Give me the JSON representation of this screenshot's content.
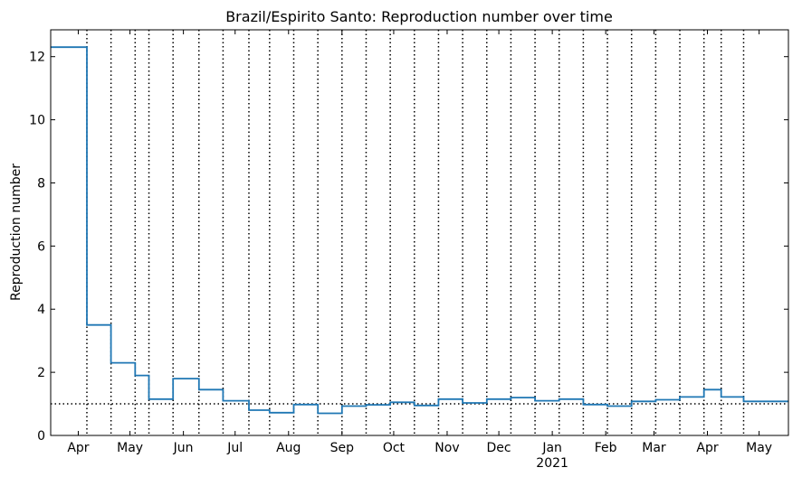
{
  "chart_data": {
    "type": "line",
    "title": "Brazil/Espirito Santo: Reproduction number over time",
    "xlabel": "",
    "ylabel": "Reproduction number",
    "xlim": [
      "2020-03-16",
      "2021-05-18"
    ],
    "ylim": [
      0,
      12.85
    ],
    "yticks": [
      0,
      2,
      4,
      6,
      8,
      10,
      12
    ],
    "xticks": [
      {
        "date": "2020-04-01",
        "label": "Apr"
      },
      {
        "date": "2020-05-01",
        "label": "May"
      },
      {
        "date": "2020-06-01",
        "label": "Jun"
      },
      {
        "date": "2020-07-01",
        "label": "Jul"
      },
      {
        "date": "2020-08-01",
        "label": "Aug"
      },
      {
        "date": "2020-09-01",
        "label": "Sep"
      },
      {
        "date": "2020-10-01",
        "label": "Oct"
      },
      {
        "date": "2020-11-01",
        "label": "Nov"
      },
      {
        "date": "2020-12-01",
        "label": "Dec"
      },
      {
        "date": "2021-01-01",
        "label": "Jan"
      },
      {
        "date": "2021-02-01",
        "label": "Feb"
      },
      {
        "date": "2021-03-01",
        "label": "Mar"
      },
      {
        "date": "2021-04-01",
        "label": "Apr"
      },
      {
        "date": "2021-05-01",
        "label": "May"
      }
    ],
    "year_label": {
      "date": "2021-01-01",
      "label": "2021"
    },
    "reference_line": 1,
    "changepoints": [
      "2020-04-06",
      "2020-04-20",
      "2020-05-04",
      "2020-05-12",
      "2020-05-26",
      "2020-06-10",
      "2020-06-24",
      "2020-07-09",
      "2020-07-21",
      "2020-08-04",
      "2020-08-18",
      "2020-09-01",
      "2020-09-15",
      "2020-09-29",
      "2020-10-13",
      "2020-10-27",
      "2020-11-10",
      "2020-11-24",
      "2020-12-08",
      "2020-12-22",
      "2021-01-05",
      "2021-01-19",
      "2021-02-02",
      "2021-02-16",
      "2021-03-02",
      "2021-03-16",
      "2021-03-30",
      "2021-04-09",
      "2021-04-22"
    ],
    "series": [
      {
        "color": "#1f77b4",
        "x": [
          "2020-03-16",
          "2020-04-06",
          "2020-04-06",
          "2020-04-20",
          "2020-04-20",
          "2020-05-04",
          "2020-05-04",
          "2020-05-12",
          "2020-05-12",
          "2020-05-26",
          "2020-05-26",
          "2020-06-10",
          "2020-06-10",
          "2020-06-24",
          "2020-06-24",
          "2020-07-09",
          "2020-07-09",
          "2020-07-21",
          "2020-07-21",
          "2020-08-04",
          "2020-08-04",
          "2020-08-18",
          "2020-08-18",
          "2020-09-01",
          "2020-09-01",
          "2020-09-15",
          "2020-09-15",
          "2020-09-29",
          "2020-09-29",
          "2020-10-13",
          "2020-10-13",
          "2020-10-27",
          "2020-10-27",
          "2020-11-10",
          "2020-11-10",
          "2020-11-24",
          "2020-11-24",
          "2020-12-08",
          "2020-12-08",
          "2020-12-22",
          "2020-12-22",
          "2021-01-05",
          "2021-01-05",
          "2021-01-19",
          "2021-01-19",
          "2021-02-02",
          "2021-02-02",
          "2021-02-16",
          "2021-02-16",
          "2021-03-02",
          "2021-03-02",
          "2021-03-16",
          "2021-03-16",
          "2021-03-30",
          "2021-03-30",
          "2021-04-09",
          "2021-04-09",
          "2021-04-22",
          "2021-04-22",
          "2021-05-18"
        ],
        "y": [
          12.3,
          12.3,
          3.5,
          3.5,
          2.3,
          2.3,
          1.9,
          1.9,
          1.15,
          1.15,
          1.8,
          1.8,
          1.45,
          1.45,
          1.1,
          1.1,
          0.8,
          0.8,
          0.72,
          0.72,
          0.98,
          0.98,
          0.7,
          0.7,
          0.93,
          0.93,
          0.97,
          0.97,
          1.05,
          1.05,
          0.95,
          0.95,
          1.15,
          1.15,
          1.03,
          1.03,
          1.15,
          1.15,
          1.2,
          1.2,
          1.1,
          1.1,
          1.15,
          1.15,
          0.98,
          0.98,
          0.93,
          0.93,
          1.08,
          1.08,
          1.13,
          1.13,
          1.22,
          1.22,
          1.45,
          1.45,
          1.22,
          1.22,
          1.08,
          1.08
        ]
      }
    ]
  }
}
